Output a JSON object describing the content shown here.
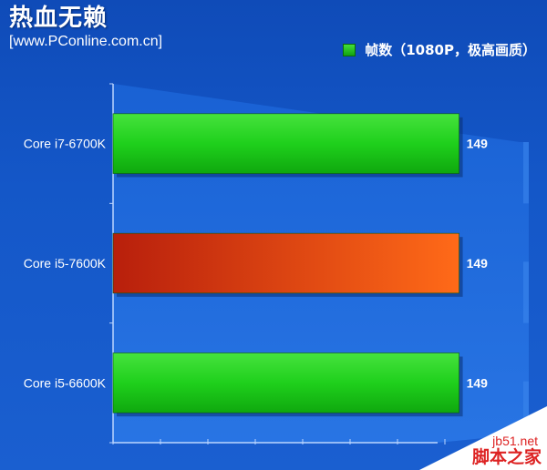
{
  "header": {
    "title": "热血无赖",
    "subtitle": "[www.PConline.com.cn]"
  },
  "watermark": {
    "url": "jb51.net",
    "name": "脚本之家"
  },
  "colors": {
    "green_bar": "#1dc91a",
    "orange_bar": "#e5431a",
    "legend": "#1dc91a"
  },
  "chart_data": {
    "type": "bar",
    "orientation": "horizontal",
    "title": "热血无赖",
    "categories": [
      "Core i7-6700K",
      "Core i5-7600K",
      "Core i5-6600K"
    ],
    "series": [
      {
        "name": "帧数（1080P，极高画质）",
        "values": [
          149,
          149,
          149
        ]
      }
    ],
    "bar_colors": [
      "#1dc91a",
      "#e5431a",
      "#1dc91a"
    ],
    "legend_position": "top-right",
    "xlim": [
      0,
      179
    ],
    "grid": true
  }
}
